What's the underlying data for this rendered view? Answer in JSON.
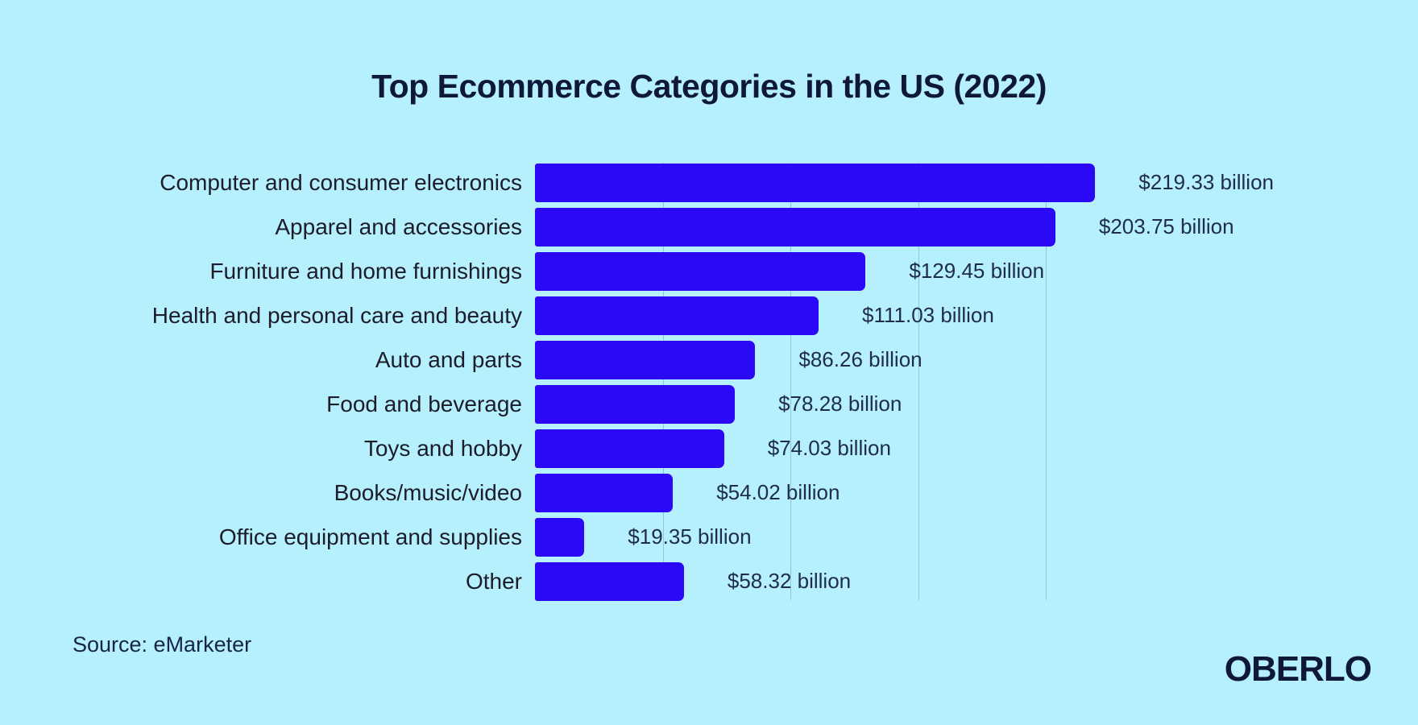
{
  "title": "Top Ecommerce Categories in the US (2022)",
  "source": "Source: eMarketer",
  "brand": "OBERLO",
  "colors": {
    "background": "#b6f0fc",
    "bar": "#2b08f6",
    "title": "#0f173a",
    "category_label": "#1c1c2b",
    "value_label": "#202c4e",
    "source_label": "#16244a",
    "gridline": "rgba(90,130,150,0.38)"
  },
  "chart_data": {
    "type": "bar",
    "orientation": "horizontal",
    "title": "Top Ecommerce Categories in the US (2022)",
    "unit": "USD billion",
    "grid": true,
    "legend": false,
    "xlim_billion": [
      0,
      250
    ],
    "x_gridlines_billion": [
      50,
      100,
      150,
      200
    ],
    "categories": [
      "Computer and consumer electronics",
      "Apparel and accessories",
      "Furniture and home furnishings",
      "Health and personal care and beauty",
      "Auto and parts",
      "Food and beverage",
      "Toys and hobby",
      "Books/music/video",
      "Office equipment and supplies",
      "Other"
    ],
    "values": [
      219.33,
      203.75,
      129.45,
      111.03,
      86.26,
      78.28,
      74.03,
      54.02,
      19.35,
      58.32
    ],
    "value_labels": [
      "$219.33 billion",
      "$203.75 billion",
      "$129.45 billion",
      "$111.03 billion",
      "$86.26 billion",
      "$78.28 billion",
      "$74.03 billion",
      "$54.02 billion",
      "$19.35 billion",
      "$58.32 billion"
    ]
  }
}
